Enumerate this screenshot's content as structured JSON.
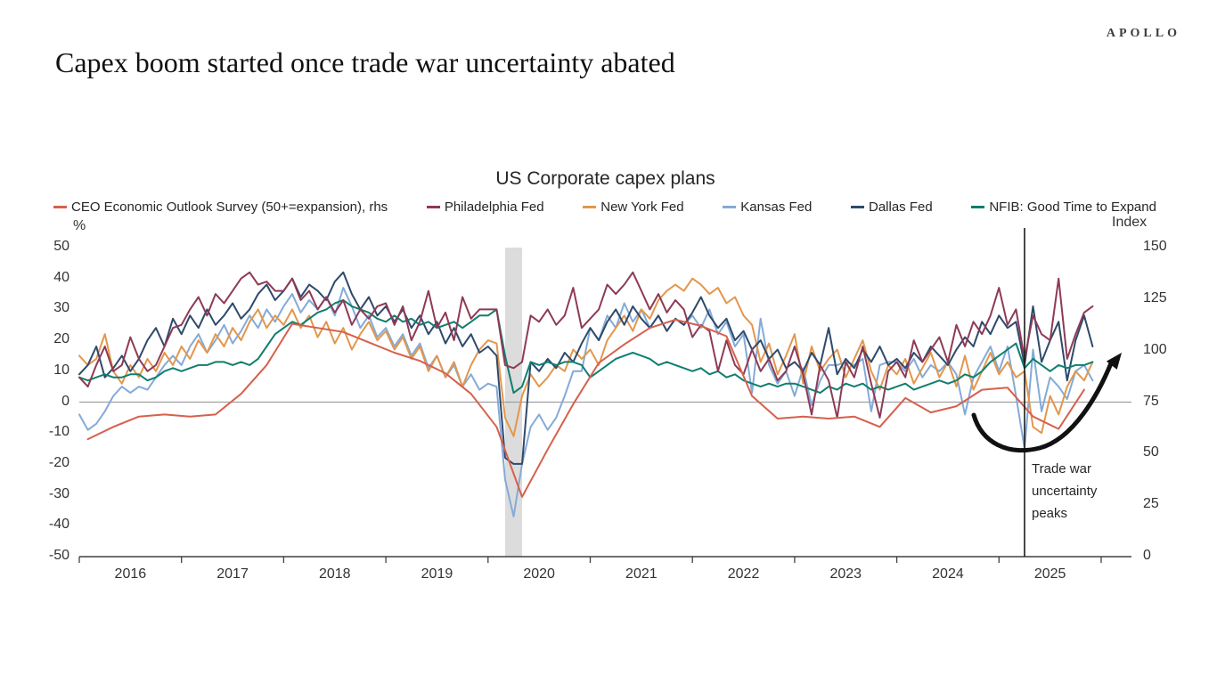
{
  "brand": "APOLLO",
  "page_title": "Capex boom started once trade war uncertainty abated",
  "chart_data": {
    "type": "line",
    "title": "US Corporate capex plans",
    "legend_position": "top",
    "grid": "off",
    "left_axis": {
      "label": "%",
      "min": -50,
      "max": 50,
      "ticks": [
        50,
        40,
        30,
        20,
        10,
        0,
        -10,
        -20,
        -30,
        -40,
        -50
      ]
    },
    "right_axis": {
      "label": "Index",
      "min": 0,
      "max": 150,
      "ticks": [
        150,
        125,
        100,
        75,
        50,
        25,
        0
      ]
    },
    "x_axis": {
      "start_year": 2016,
      "end_year": 2026,
      "year_labels": [
        "2016",
        "2017",
        "2018",
        "2019",
        "2020",
        "2021",
        "2022",
        "2023",
        "2024",
        "2025"
      ]
    },
    "annotations": {
      "recession_band": {
        "from": "2020-03",
        "to": "2020-05",
        "color": "#dcdcdc"
      },
      "event_line": {
        "x": "2025-04",
        "color": "#1a1a1a",
        "label": "Trade war\nuncertainty\npeaks"
      },
      "trend_arrow": {
        "from": "2024-06",
        "to": "2025-12",
        "shape": "u-swoosh",
        "color": "#111111"
      }
    },
    "series": [
      {
        "name": "CEO Economic Outlook Survey (50+=expansion), rhs",
        "axis": "right",
        "color": "#d6604d",
        "start": "2016-02",
        "step_months": 3,
        "values": [
          57,
          63,
          68,
          69,
          68,
          69,
          79,
          93,
          113,
          111,
          109,
          104,
          99,
          95,
          89,
          79,
          63,
          29,
          52,
          74,
          94,
          103,
          111,
          115,
          112,
          107,
          78,
          67,
          68,
          67,
          68,
          63,
          77,
          70,
          73,
          81,
          82,
          68,
          62,
          81
        ]
      },
      {
        "name": "Philadelphia Fed",
        "axis": "left",
        "color": "#8e3a55",
        "start": "2016-01",
        "step_months": 1,
        "values": [
          8,
          5,
          12,
          18,
          10,
          12,
          21,
          14,
          10,
          12,
          18,
          24,
          25,
          30,
          34,
          28,
          35,
          32,
          36,
          40,
          42,
          38,
          39,
          36,
          36,
          40,
          33,
          36,
          30,
          34,
          29,
          33,
          25,
          30,
          27,
          31,
          32,
          25,
          31,
          20,
          26,
          36,
          24,
          29,
          20,
          34,
          27,
          30,
          30,
          30,
          12,
          11,
          13,
          28,
          26,
          30,
          25,
          28,
          37,
          24,
          27,
          30,
          38,
          35,
          38,
          42,
          36,
          30,
          35,
          29,
          33,
          30,
          21,
          25,
          23,
          10,
          20,
          12,
          9,
          17,
          10,
          14,
          7,
          10,
          18,
          9,
          -4,
          12,
          7,
          -5,
          13,
          8,
          18,
          6,
          -5,
          10,
          13,
          8,
          20,
          13,
          17,
          21,
          13,
          25,
          18,
          26,
          22,
          28,
          37,
          25,
          30,
          14,
          28,
          22,
          20,
          40,
          14,
          22,
          29,
          31
        ]
      },
      {
        "name": "New York Fed",
        "axis": "left",
        "color": "#e2974d",
        "start": "2016-01",
        "step_months": 1,
        "values": [
          15,
          12,
          14,
          22,
          10,
          6,
          12,
          8,
          14,
          10,
          16,
          12,
          18,
          14,
          20,
          16,
          22,
          18,
          24,
          20,
          26,
          30,
          24,
          28,
          25,
          30,
          24,
          28,
          21,
          26,
          19,
          24,
          17,
          22,
          26,
          20,
          23,
          17,
          21,
          14,
          18,
          10,
          15,
          8,
          13,
          5,
          12,
          17,
          20,
          19,
          -5,
          -11,
          2,
          9,
          5,
          8,
          12,
          10,
          17,
          14,
          17,
          12,
          20,
          24,
          28,
          23,
          30,
          27,
          33,
          36,
          38,
          36,
          40,
          38,
          35,
          37,
          32,
          34,
          28,
          25,
          13,
          19,
          9,
          15,
          22,
          6,
          18,
          10,
          14,
          17,
          8,
          14,
          20,
          10,
          4,
          12,
          9,
          14,
          6,
          11,
          16,
          8,
          13,
          5,
          15,
          4,
          10,
          16,
          9,
          13,
          8,
          10,
          -8,
          -10,
          2,
          -4,
          5,
          10,
          7,
          13
        ]
      },
      {
        "name": "Kansas Fed",
        "axis": "left",
        "color": "#84aad8",
        "start": "2016-01",
        "step_months": 1,
        "values": [
          -4,
          -9,
          -7,
          -3,
          2,
          5,
          3,
          5,
          4,
          8,
          12,
          15,
          12,
          18,
          22,
          16,
          20,
          25,
          19,
          23,
          28,
          24,
          30,
          26,
          31,
          35,
          29,
          33,
          30,
          34,
          28,
          37,
          31,
          24,
          28,
          21,
          24,
          18,
          22,
          15,
          19,
          11,
          15,
          8,
          12,
          5,
          9,
          4,
          6,
          5,
          -25,
          -37,
          -20,
          -8,
          -4,
          -9,
          -5,
          2,
          10,
          10,
          24,
          20,
          28,
          24,
          32,
          26,
          30,
          24,
          28,
          23,
          27,
          25,
          28,
          24,
          30,
          22,
          26,
          18,
          22,
          3,
          27,
          12,
          6,
          10,
          2,
          11,
          -1,
          7,
          12,
          12,
          13,
          12,
          14,
          -3,
          12,
          13,
          13,
          10,
          14,
          8,
          12,
          10,
          13,
          9,
          -4,
          8,
          13,
          18,
          10,
          18,
          2,
          -15,
          17,
          -3,
          8,
          5,
          1,
          10,
          12,
          7
        ]
      },
      {
        "name": "Dallas Fed",
        "axis": "left",
        "color": "#2e4a6b",
        "start": "2016-01",
        "step_months": 1,
        "values": [
          9,
          12,
          18,
          8,
          11,
          15,
          10,
          14,
          20,
          24,
          18,
          27,
          22,
          28,
          24,
          30,
          25,
          28,
          32,
          27,
          30,
          35,
          38,
          33,
          36,
          40,
          34,
          38,
          36,
          33,
          39,
          42,
          35,
          30,
          34,
          28,
          31,
          26,
          30,
          24,
          28,
          22,
          26,
          19,
          24,
          18,
          22,
          16,
          18,
          15,
          -18,
          -20,
          -20,
          13,
          10,
          14,
          11,
          16,
          13,
          19,
          24,
          20,
          26,
          30,
          25,
          31,
          27,
          24,
          28,
          23,
          27,
          25,
          29,
          34,
          28,
          24,
          27,
          20,
          23,
          17,
          20,
          14,
          17,
          11,
          13,
          10,
          16,
          12,
          24,
          9,
          14,
          11,
          17,
          13,
          18,
          12,
          14,
          11,
          16,
          13,
          18,
          15,
          12,
          17,
          21,
          18,
          26,
          22,
          28,
          24,
          26,
          12,
          31,
          13,
          20,
          26,
          7,
          20,
          28,
          18
        ]
      },
      {
        "name": "NFIB: Good Time to Expand",
        "axis": "left",
        "color": "#107e6e",
        "start": "2016-01",
        "step_months": 1,
        "values": [
          8,
          7,
          8,
          9,
          8,
          8,
          9,
          9,
          7,
          8,
          10,
          11,
          10,
          11,
          12,
          12,
          13,
          13,
          12,
          13,
          12,
          14,
          18,
          22,
          24,
          26,
          25,
          27,
          29,
          30,
          32,
          33,
          31,
          30,
          29,
          27,
          26,
          28,
          26,
          27,
          25,
          26,
          24,
          25,
          26,
          24,
          26,
          28,
          28,
          30,
          15,
          3,
          5,
          13,
          12,
          13,
          12,
          13,
          13,
          12,
          8,
          10,
          12,
          14,
          15,
          16,
          15,
          14,
          12,
          13,
          12,
          11,
          10,
          11,
          9,
          10,
          8,
          9,
          7,
          6,
          5,
          6,
          5,
          6,
          6,
          5,
          4,
          3,
          5,
          4,
          6,
          5,
          6,
          4,
          5,
          4,
          5,
          6,
          4,
          5,
          6,
          7,
          6,
          7,
          9,
          8,
          10,
          13,
          15,
          17,
          19,
          11,
          14,
          12,
          10,
          12,
          11,
          12,
          12,
          13
        ]
      }
    ]
  }
}
